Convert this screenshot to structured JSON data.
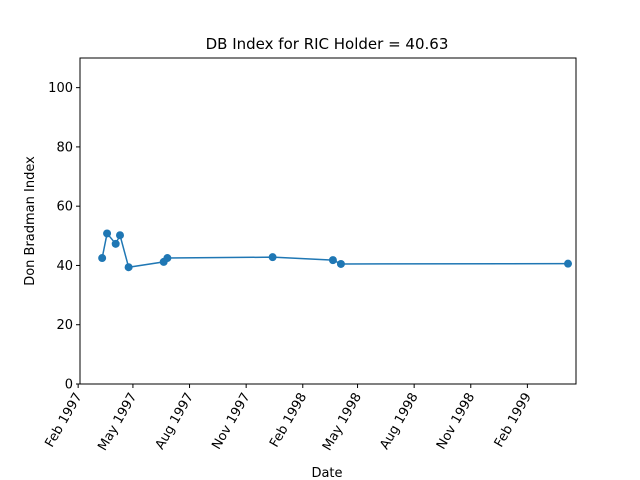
{
  "chart_data": {
    "type": "line",
    "title": "DB Index for RIC Holder = 40.63",
    "xlabel": "Date",
    "ylabel": "Don Bradman Index",
    "ylim": [
      0,
      110
    ],
    "xlim": [
      "1997-02-04",
      "1999-04-21"
    ],
    "yticks": [
      0,
      20,
      40,
      60,
      80,
      100
    ],
    "xticks": [
      {
        "date": "1997-02-01",
        "label": "Feb 1997"
      },
      {
        "date": "1997-05-01",
        "label": "May 1997"
      },
      {
        "date": "1997-08-01",
        "label": "Aug 1997"
      },
      {
        "date": "1997-11-01",
        "label": "Nov 1997"
      },
      {
        "date": "1998-02-01",
        "label": "Feb 1998"
      },
      {
        "date": "1998-05-01",
        "label": "May 1998"
      },
      {
        "date": "1998-08-01",
        "label": "Aug 1998"
      },
      {
        "date": "1998-11-01",
        "label": "Nov 1998"
      },
      {
        "date": "1999-02-01",
        "label": "Feb 1999"
      }
    ],
    "grid": false,
    "series": [
      {
        "color": "#1f77b4",
        "marker": "circle",
        "points": [
          {
            "x": "1997-03-12",
            "y": 42.5
          },
          {
            "x": "1997-03-20",
            "y": 50.8
          },
          {
            "x": "1997-04-03",
            "y": 47.3
          },
          {
            "x": "1997-04-10",
            "y": 50.2
          },
          {
            "x": "1997-04-24",
            "y": 39.4
          },
          {
            "x": "1997-06-20",
            "y": 41.2
          },
          {
            "x": "1997-06-26",
            "y": 42.5
          },
          {
            "x": "1997-12-14",
            "y": 42.8
          },
          {
            "x": "1998-03-22",
            "y": 41.8
          },
          {
            "x": "1998-04-04",
            "y": 40.5
          },
          {
            "x": "1999-04-08",
            "y": 40.6
          }
        ]
      }
    ]
  }
}
